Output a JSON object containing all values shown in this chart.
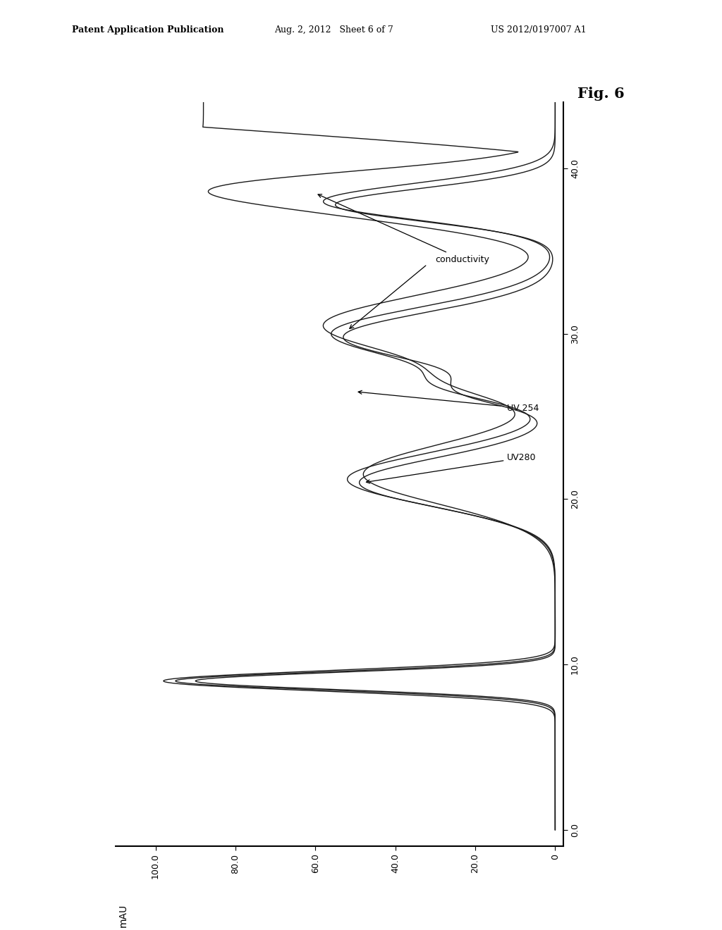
{
  "title": "Fig. 6",
  "xlabel": "mAU",
  "xlim": [
    0,
    110
  ],
  "ylim": [
    -1,
    45
  ],
  "x_ticks": [
    0,
    20.0,
    40.0,
    60.0,
    80.0,
    100.0
  ],
  "x_tick_labels": [
    "0",
    "20.0",
    "40.0",
    "60.0",
    "80.0",
    "100.0"
  ],
  "y_ticks": [
    0.0,
    10.0,
    20.0,
    30.0,
    40.0
  ],
  "y_tick_labels": [
    "0.0",
    "10.0",
    "20.0",
    "30.0",
    "40.0"
  ],
  "background_color": "#ffffff",
  "line_color": "#1a1a1a",
  "annotation_conductivity": "conductivity",
  "annotation_uv254": "UV 254",
  "annotation_uv280": "UV280",
  "patent_left": "Patent Application Publication",
  "patent_mid": "Aug. 2, 2012   Sheet 6 of 7",
  "patent_right": "US 2012/0197007 A1"
}
